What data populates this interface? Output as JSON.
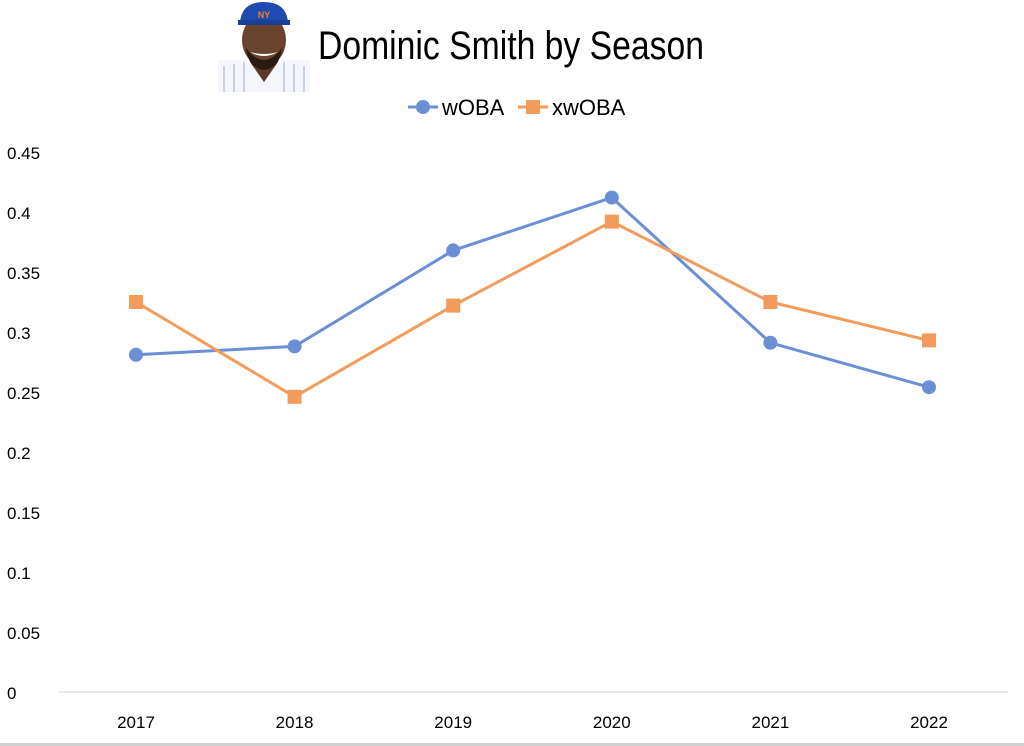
{
  "chart_data": {
    "type": "line",
    "title": "Dominic Smith by Season",
    "categories": [
      "2017",
      "2018",
      "2019",
      "2020",
      "2021",
      "2022"
    ],
    "series": [
      {
        "name": "wOBA",
        "color": "#6a8fd4",
        "marker": "circle",
        "values": [
          0.281,
          0.288,
          0.368,
          0.412,
          0.291,
          0.254
        ]
      },
      {
        "name": "xwOBA",
        "color": "#f29b5a",
        "marker": "square",
        "values": [
          0.325,
          0.246,
          0.322,
          0.392,
          0.325,
          0.293
        ]
      }
    ],
    "yticks": [
      "0",
      "0.05",
      "0.1",
      "0.15",
      "0.2",
      "0.25",
      "0.3",
      "0.35",
      "0.4",
      "0.45"
    ],
    "ylim": [
      0,
      0.45
    ],
    "xlabel": "",
    "ylabel": "",
    "grid": false,
    "legend": "top-center"
  }
}
